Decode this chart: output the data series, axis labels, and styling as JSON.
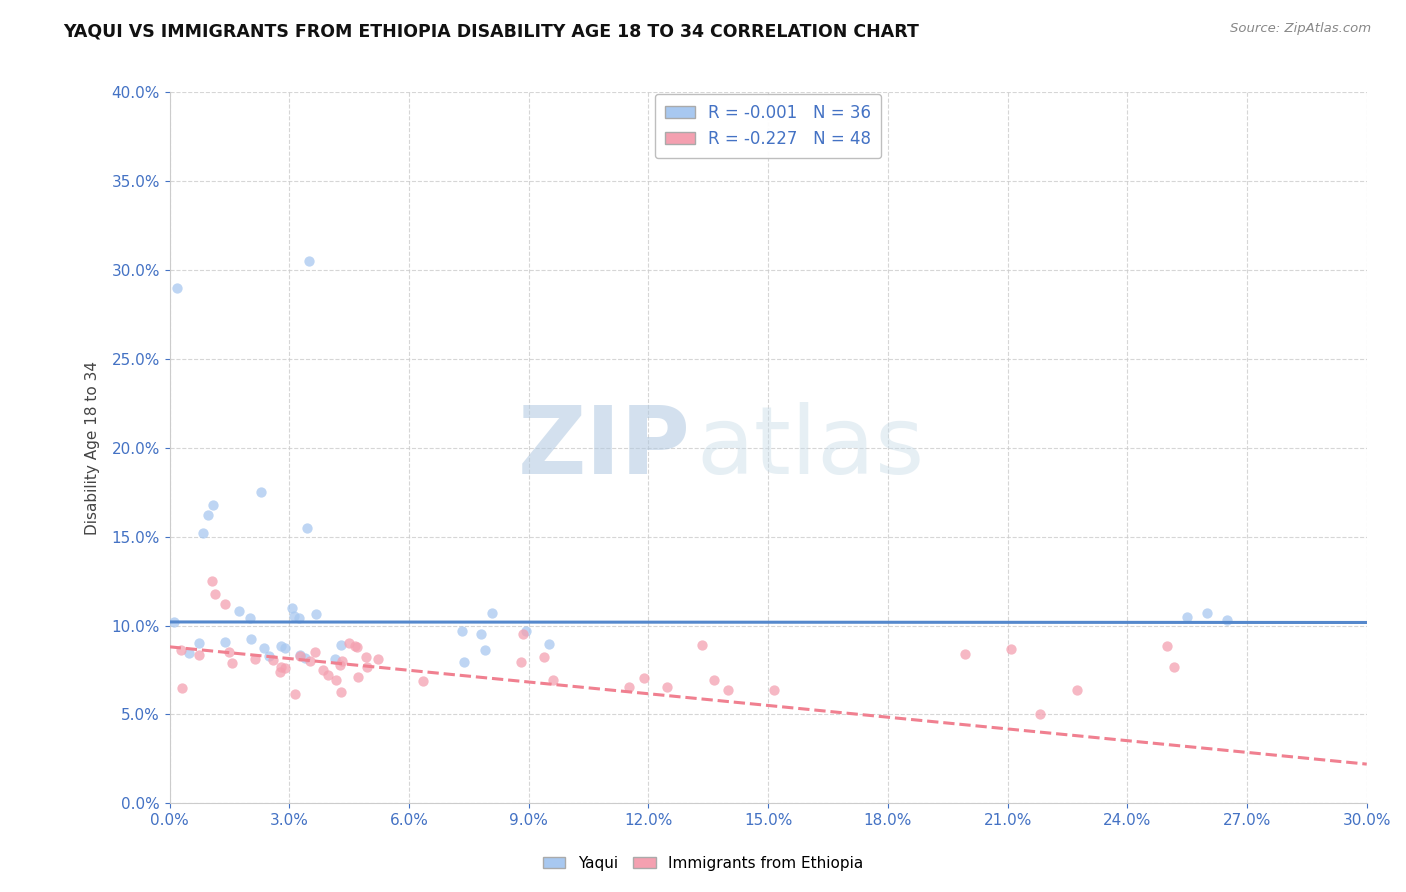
{
  "title": "YAQUI VS IMMIGRANTS FROM ETHIOPIA DISABILITY AGE 18 TO 34 CORRELATION CHART",
  "source": "Source: ZipAtlas.com",
  "yaxis_label": "Disability Age 18 to 34",
  "legend_r1": "R = -0.001   N = 36",
  "legend_r2": "R = -0.227   N = 48",
  "legend_label1": "Yaqui",
  "legend_label2": "Immigrants from Ethiopia",
  "color_yaqui": "#a8c8f0",
  "color_ethiopia": "#f4a0b0",
  "color_text_blue": "#4472c4",
  "color_regression_yaqui": "#5588cc",
  "color_regression_ethiopia": "#f08090",
  "watermark_zip": "ZIP",
  "watermark_atlas": "atlas",
  "xlim": [
    0.0,
    0.3
  ],
  "ylim": [
    0.0,
    0.4
  ],
  "grid_color": "#cccccc",
  "background_color": "#ffffff",
  "dot_size": 55,
  "dot_alpha": 0.75,
  "yaqui_regression_slope": -0.001,
  "yaqui_regression_intercept": 0.102,
  "ethiopia_regression_slope": -0.22,
  "ethiopia_regression_intercept": 0.088
}
